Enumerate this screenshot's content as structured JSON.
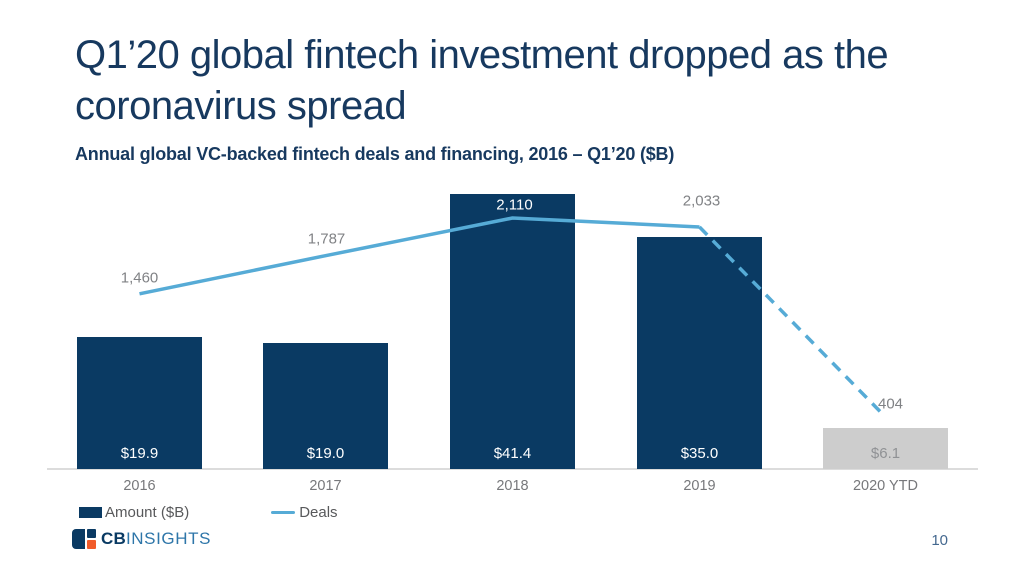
{
  "slide": {
    "title_line1": "Q1’20 global fintech investment dropped as the",
    "title_line2": "coronavirus spread",
    "subtitle": "Annual global VC-backed fintech deals and financing, 2016 – Q1’20 ($B)",
    "page_number": "10"
  },
  "legend": {
    "amount_label": "Amount ($B)",
    "deals_label": "Deals"
  },
  "logo": {
    "cb": "CB",
    "insights": "INSIGHTS"
  },
  "colors": {
    "navy": "#0a3a63",
    "title_navy": "#17395f",
    "line_blue": "#56abd6",
    "gray_bar": "#cdcdcd",
    "orange": "#f15b2a",
    "insights_blue": "#2e76a9"
  },
  "chart_data": {
    "type": "bar+line",
    "title": "Annual global VC-backed fintech deals and financing, 2016 – Q1’20 ($B)",
    "categories": [
      "2016",
      "2017",
      "2018",
      "2019",
      "2020 YTD"
    ],
    "series": [
      {
        "name": "Amount ($B)",
        "type": "bar",
        "values": [
          19.9,
          19.0,
          41.4,
          35.0,
          6.1
        ],
        "labels": [
          "$19.9",
          "$19.0",
          "$41.4",
          "$35.0",
          "$6.1"
        ]
      },
      {
        "name": "Deals",
        "type": "line",
        "values": [
          1460,
          1787,
          2110,
          2033,
          404
        ],
        "labels": [
          "1,460",
          "1,787",
          "2,110",
          "2,033",
          "404"
        ],
        "dashed_from_index": 3
      }
    ],
    "bar_colors": [
      "#0a3a63",
      "#0a3a63",
      "#0a3a63",
      "#0a3a63",
      "#cdcdcd"
    ],
    "bar_label_colors": [
      "#ffffff",
      "#ffffff",
      "#ffffff",
      "#ffffff",
      "#909295"
    ],
    "deals_label_colors": [
      "#808285",
      "#808285",
      "#ffffff",
      "#808285",
      "#808285"
    ],
    "legend_position": "bottom-left",
    "grid": false,
    "value_labels_inside_bars": true
  }
}
